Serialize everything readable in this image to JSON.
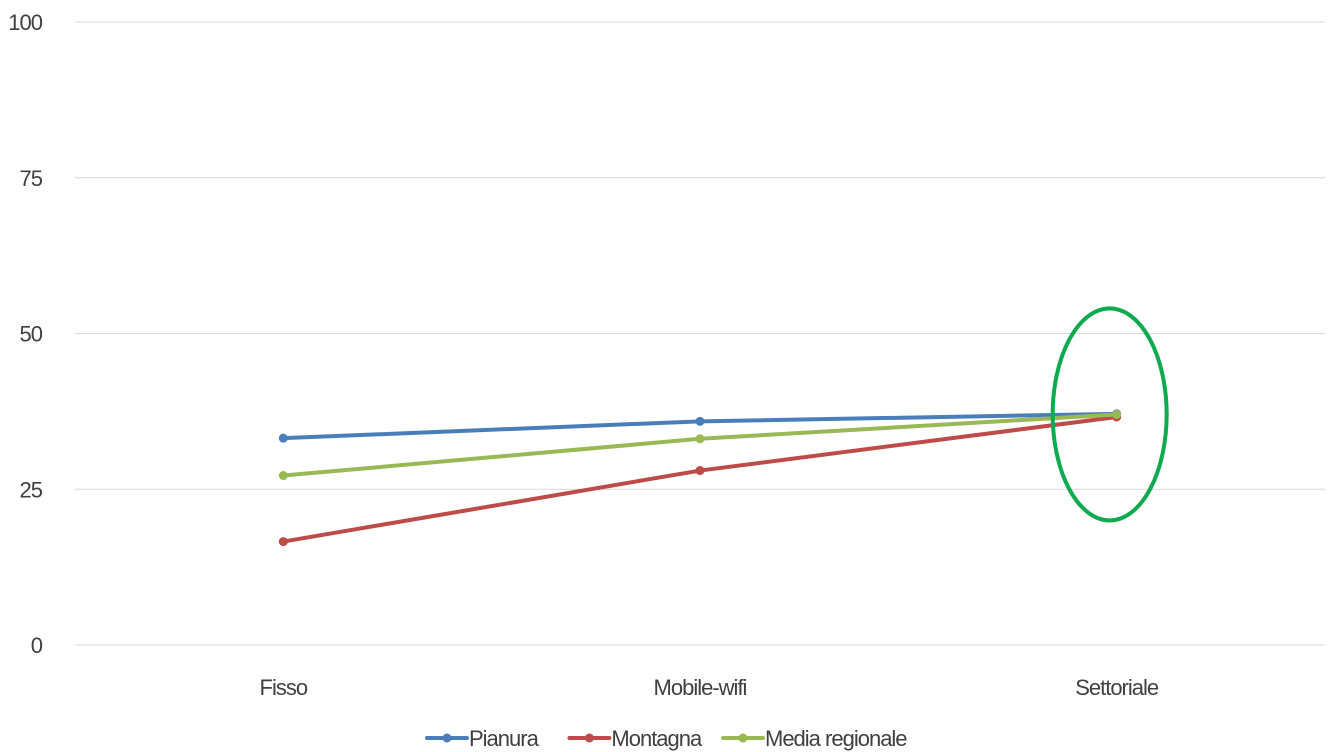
{
  "chart_data": {
    "type": "line",
    "categories": [
      "Fisso",
      "Mobile-wifi",
      "Settoriale"
    ],
    "series": [
      {
        "name": "Pianura",
        "values": [
          33.2,
          35.9,
          37.1
        ],
        "color": "#4a7ebb"
      },
      {
        "name": "Montagna",
        "values": [
          16.6,
          28.0,
          36.6
        ],
        "color": "#be4b48"
      },
      {
        "name": "Media regionale",
        "values": [
          27.2,
          33.1,
          37.0
        ],
        "color": "#98b954"
      }
    ],
    "ylim": [
      0,
      100
    ],
    "y_ticks": [
      "0",
      "25",
      "50",
      "75",
      "100"
    ],
    "grid": true,
    "legend_position": "bottom",
    "annotation": {
      "shape": "ellipse",
      "category": "Settoriale",
      "color": "#0eaa4f"
    },
    "title": "",
    "xlabel": "",
    "ylabel": ""
  }
}
